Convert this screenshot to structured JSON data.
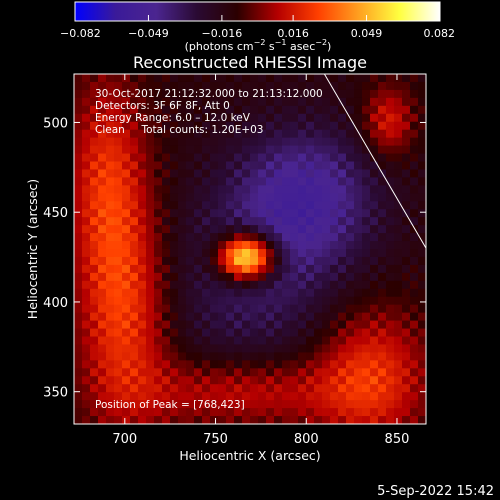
{
  "chart_data": {
    "type": "heatmap",
    "title": "Reconstructed RHESSI Image",
    "xlabel": "Heliocentric X (arcsec)",
    "ylabel": "Heliocentric Y (arcsec)",
    "xlim": [
      672,
      866
    ],
    "ylim": [
      332,
      527
    ],
    "x_ticks": [
      "700",
      "750",
      "800",
      "850"
    ],
    "x_tick_values": [
      700,
      750,
      800,
      850
    ],
    "y_ticks": [
      "350",
      "400",
      "450",
      "500"
    ],
    "y_tick_values": [
      350,
      400,
      450,
      500
    ],
    "colorbar": {
      "range": [
        -0.082,
        0.082
      ],
      "tick_labels": [
        "−0.082",
        "−0.049",
        "−0.016",
        "0.016",
        "0.049",
        "0.082"
      ],
      "tick_values": [
        -0.082,
        -0.049,
        -0.016,
        0.016,
        0.049,
        0.082
      ],
      "unit_prefix": "(photons cm",
      "unit_exp1": "−2",
      "unit_mid": " s",
      "unit_exp2": "−1",
      "unit_suffix": " asec",
      "unit_exp3": "−2",
      "unit_end": ")",
      "colors": [
        "#0000ff",
        "#3a1a99",
        "#4b2590",
        "#2a0a33",
        "#2b0000",
        "#b50000",
        "#ff4000",
        "#ffa020",
        "#ffff40",
        "#ffffff"
      ]
    },
    "info_lines": [
      "30-Oct-2017 21:12:32.000 to 21:13:12.000",
      "Detectors: 3F 6F 8F, Att 0",
      "Energy Range: 6.0 – 12.0 keV",
      "Clean     Total counts: 1.20E+03"
    ],
    "peak_label": "Position of Peak = [768,423]",
    "peak": [
      768,
      423
    ],
    "limb_line": [
      [
        810,
        527
      ],
      [
        866,
        430
      ]
    ],
    "sources": [
      {
        "x": 767,
        "y": 425,
        "sx": 11,
        "sy": 9,
        "amp": 0.095
      },
      {
        "x": 700,
        "y": 395,
        "sx": 18,
        "sy": 45,
        "amp": 0.038
      },
      {
        "x": 690,
        "y": 470,
        "sx": 15,
        "sy": 40,
        "amp": 0.03
      },
      {
        "x": 765,
        "y": 350,
        "sx": 40,
        "sy": 14,
        "amp": 0.028
      },
      {
        "x": 835,
        "y": 360,
        "sx": 22,
        "sy": 28,
        "amp": 0.035
      },
      {
        "x": 845,
        "y": 500,
        "sx": 10,
        "sy": 14,
        "amp": 0.03
      },
      {
        "x": 800,
        "y": 460,
        "sx": 28,
        "sy": 28,
        "amp": -0.035
      },
      {
        "x": 770,
        "y": 410,
        "sx": 40,
        "sy": 40,
        "amp": -0.022
      }
    ]
  },
  "footer": {
    "date": "5-Sep-2022 15:42"
  }
}
